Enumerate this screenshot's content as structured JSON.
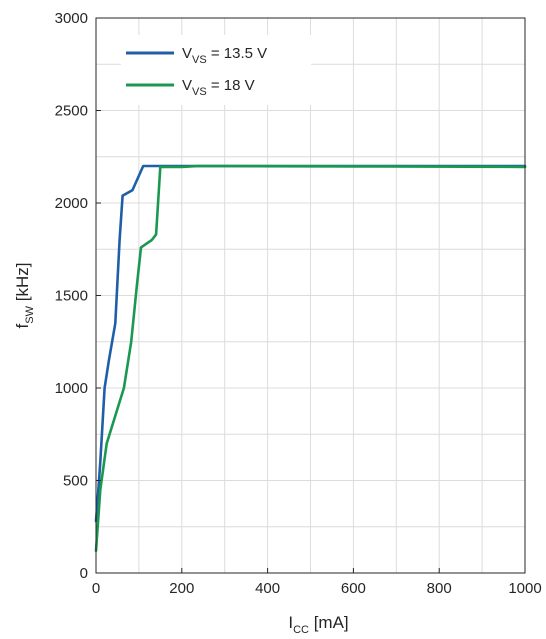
{
  "chart_data": {
    "type": "line",
    "xlabel": {
      "main": "I",
      "sub": "CC",
      "unit": " [mA]"
    },
    "ylabel": {
      "main": "f",
      "sub": "SW",
      "unit": " [kHz]"
    },
    "xlim": [
      0,
      1000
    ],
    "ylim": [
      0,
      3000
    ],
    "x_ticks": [
      "0",
      "200",
      "400",
      "600",
      "800",
      "1000"
    ],
    "y_ticks": [
      "0",
      "500",
      "1000",
      "1500",
      "2000",
      "2500",
      "3000"
    ],
    "grid": true,
    "legend_position": "top-left",
    "series": [
      {
        "legend": {
          "main": "V",
          "sub": "VS",
          "rest": " = 13.5 V"
        },
        "color": "#1f5fa8",
        "x": [
          0,
          5,
          10,
          20,
          30,
          45,
          55,
          62,
          70,
          85,
          110,
          130,
          160,
          220,
          600,
          1000
        ],
        "y": [
          280,
          430,
          600,
          1000,
          1150,
          1350,
          1800,
          2040,
          2050,
          2070,
          2200,
          2200,
          2200,
          2200,
          2200,
          2200
        ]
      },
      {
        "legend": {
          "main": "V",
          "sub": "VS",
          "rest": " = 18 V"
        },
        "color": "#1a9850",
        "x": [
          0,
          10,
          25,
          45,
          65,
          82,
          95,
          105,
          130,
          140,
          150,
          200,
          240,
          600,
          1000
        ],
        "y": [
          120,
          450,
          700,
          850,
          1000,
          1250,
          1550,
          1760,
          1800,
          1830,
          2195,
          2195,
          2200,
          2198,
          2195
        ]
      }
    ]
  }
}
